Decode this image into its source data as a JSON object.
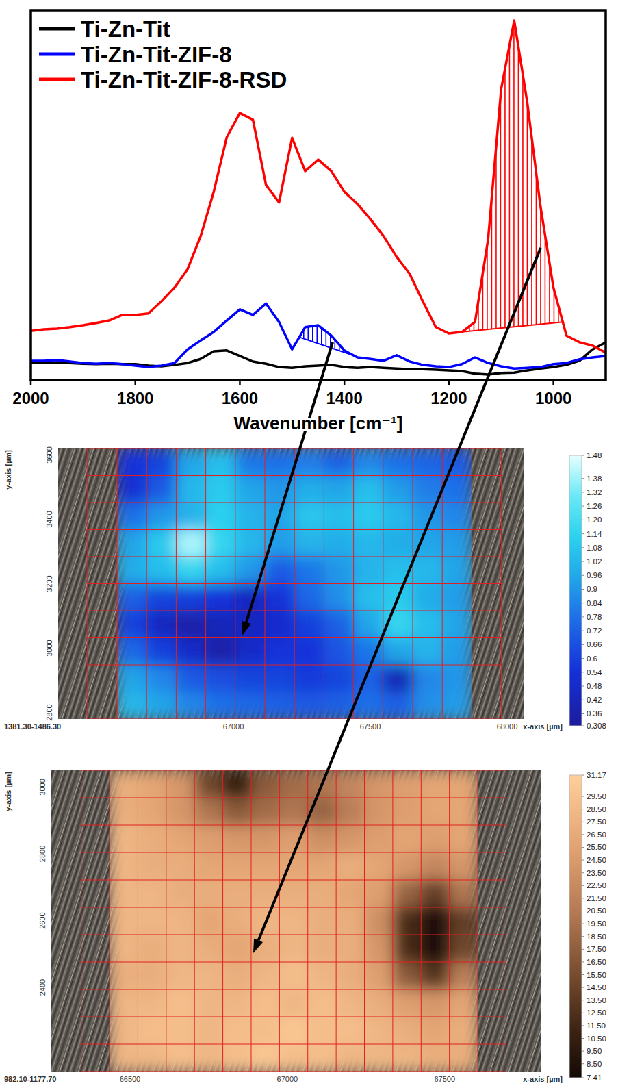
{
  "chart_data": [
    {
      "type": "line",
      "x_label": "Wavenumber [cm⁻¹]",
      "xlim": [
        2000,
        900
      ],
      "xticks": [
        2000,
        1800,
        1600,
        1400,
        1200,
        1000
      ],
      "ylim": [
        0,
        100
      ],
      "tick_labels": "x",
      "legend": "upper left",
      "x": [
        2000,
        1975,
        1950,
        1925,
        1900,
        1875,
        1850,
        1825,
        1800,
        1775,
        1750,
        1725,
        1700,
        1675,
        1650,
        1625,
        1600,
        1575,
        1550,
        1525,
        1500,
        1475,
        1450,
        1425,
        1400,
        1375,
        1350,
        1325,
        1300,
        1275,
        1250,
        1225,
        1200,
        1175,
        1150,
        1125,
        1100,
        1075,
        1050,
        1025,
        1000,
        975,
        950,
        925,
        900
      ],
      "series": [
        {
          "name": "Ti-Zn-Tit",
          "color": "#000000",
          "values": [
            4.6,
            4.6,
            4.8,
            4.6,
            4.4,
            4.3,
            4.4,
            4.3,
            4.3,
            3.9,
            3.7,
            4.1,
            4.6,
            5.7,
            7.8,
            8.0,
            6.5,
            5.0,
            4.4,
            3.5,
            3.3,
            3.7,
            3.9,
            4.1,
            3.5,
            3.3,
            3.5,
            3.3,
            3.1,
            2.9,
            2.9,
            2.8,
            2.6,
            2.4,
            1.7,
            1.5,
            1.9,
            2.0,
            2.6,
            3.1,
            3.5,
            4.1,
            5.2,
            8.3,
            10.2
          ]
        },
        {
          "name": "Ti-Zn-Tit-ZIF-8",
          "color": "#0000ff",
          "values": [
            5.2,
            5.2,
            5.4,
            5.0,
            4.6,
            4.4,
            4.6,
            4.3,
            3.9,
            3.5,
            3.9,
            4.6,
            8.3,
            10.7,
            13.0,
            16.1,
            19.1,
            17.6,
            20.7,
            15.7,
            8.3,
            14.3,
            14.8,
            12.0,
            8.0,
            6.1,
            5.7,
            5.2,
            6.7,
            5.0,
            4.1,
            3.7,
            3.5,
            4.3,
            6.1,
            4.6,
            3.7,
            3.1,
            3.3,
            3.5,
            4.3,
            4.6,
            5.6,
            6.1,
            6.5
          ],
          "integration": [
            1486.3,
            1381.3
          ]
        },
        {
          "name": "Ti-Zn-Tit-ZIF-8-RSD",
          "color": "#ff0000",
          "values": [
            13.3,
            13.7,
            13.9,
            14.3,
            14.8,
            15.4,
            16.1,
            17.6,
            17.6,
            18.0,
            21.3,
            25.0,
            30.0,
            38.9,
            50.9,
            65.7,
            72.2,
            70.4,
            52.8,
            48.0,
            65.5,
            56.5,
            59.6,
            56.5,
            50.9,
            47.6,
            43.5,
            38.9,
            33.3,
            28.7,
            21.3,
            14.3,
            12.6,
            13.0,
            15.7,
            38.0,
            78.7,
            97.2,
            75.0,
            47.2,
            25.0,
            12.0,
            10.2,
            9.3,
            7.4
          ],
          "integration": [
            1177.7,
            982.1
          ]
        }
      ]
    },
    {
      "type": "heatmap",
      "caption": "1381.30-1486.30",
      "x_label": "x-axis [µm]",
      "y_label": "y-axis [µm]",
      "xlim": [
        66360,
        68060
      ],
      "ylim": [
        2780,
        3620
      ],
      "xticks": [
        67000,
        67500,
        68000
      ],
      "yticks": [
        2800,
        3000,
        3200,
        3400,
        3600
      ],
      "grid": true,
      "x_edges": [
        66575,
        66683,
        66791,
        66899,
        67007,
        67115,
        67223,
        67331,
        67439,
        67547,
        67655,
        67763,
        67871
      ],
      "y_edges": [
        3620,
        3536,
        3452,
        3368,
        3284,
        3200,
        3116,
        3032,
        2948,
        2864,
        2780
      ],
      "cells": [
        [
          0.55,
          0.62,
          0.95,
          1.05,
          0.8,
          0.78,
          0.82,
          0.72,
          0.85,
          0.78,
          0.74,
          0.7
        ],
        [
          0.52,
          0.7,
          1.02,
          1.1,
          0.95,
          0.9,
          0.98,
          0.95,
          1.05,
          0.92,
          0.82,
          0.78
        ],
        [
          0.78,
          0.9,
          1.0,
          1.12,
          1.0,
          0.95,
          1.08,
          1.05,
          1.1,
          1.02,
          0.9,
          0.85
        ],
        [
          0.95,
          1.1,
          1.4,
          1.15,
          1.02,
          0.92,
          1.0,
          0.98,
          1.02,
          0.98,
          0.95,
          0.92
        ],
        [
          0.98,
          1.05,
          1.15,
          1.05,
          0.9,
          0.7,
          0.8,
          0.9,
          1.0,
          1.05,
          1.02,
          0.95
        ],
        [
          0.72,
          0.62,
          0.6,
          0.55,
          0.45,
          0.55,
          0.75,
          0.88,
          1.05,
          1.1,
          0.98,
          0.92
        ],
        [
          0.6,
          0.45,
          0.35,
          0.42,
          0.45,
          0.5,
          0.6,
          0.72,
          0.95,
          1.15,
          1.05,
          0.95
        ],
        [
          0.75,
          0.6,
          0.48,
          0.35,
          0.48,
          0.55,
          0.55,
          0.68,
          0.8,
          0.95,
          1.0,
          0.92
        ],
        [
          0.95,
          0.85,
          0.7,
          0.65,
          0.62,
          0.62,
          0.58,
          0.62,
          0.72,
          0.4,
          0.85,
          0.9
        ],
        [
          1.02,
          0.95,
          0.85,
          0.78,
          0.75,
          0.72,
          0.7,
          0.72,
          0.78,
          0.72,
          0.88,
          0.92
        ]
      ],
      "colorbar_range": [
        0.308,
        1.48
      ],
      "colorbar_ticks": [
        1.48,
        1.38,
        1.32,
        1.26,
        {
          "value": 1.2,
          "label": "1.20"
        },
        1.14,
        1.08,
        1.02,
        0.96,
        0.9,
        0.84,
        0.78,
        0.72,
        0.66,
        0.6,
        0.54,
        0.48,
        0.42,
        0.36,
        0.308
      ]
    },
    {
      "type": "heatmap",
      "caption": "982.10-1177.70",
      "x_label": "x-axis [µm]",
      "y_label": "y-axis [µm]",
      "xlim": [
        66250,
        67805
      ],
      "ylim": [
        2148,
        3050
      ],
      "xticks": [
        66500,
        67000,
        67500
      ],
      "yticks": [
        2400,
        2600,
        2800,
        3000
      ],
      "grid": true,
      "x_edges": [
        66435,
        66525,
        66615,
        66705,
        66795,
        66885,
        66975,
        67065,
        67155,
        67245,
        67335,
        67425,
        67515,
        67605
      ],
      "y_edges": [
        3050,
        2968,
        2886,
        2804,
        2722,
        2640,
        2558,
        2476,
        2394,
        2312,
        2230,
        2148
      ],
      "cells": [
        [
          27,
          26,
          24,
          15,
          10,
          17,
          19,
          20,
          22,
          24,
          25,
          26,
          26
        ],
        [
          27,
          26,
          24,
          20,
          17,
          19,
          20,
          18,
          21,
          24,
          25,
          26,
          26
        ],
        [
          28,
          27,
          26,
          25,
          24,
          24,
          25,
          23,
          24,
          25,
          26,
          25,
          26
        ],
        [
          28,
          27,
          27,
          26,
          26,
          26,
          26,
          26,
          27,
          26,
          24,
          22,
          24
        ],
        [
          28,
          28,
          27,
          27,
          27,
          27,
          27,
          27,
          26,
          25,
          18,
          14,
          20
        ],
        [
          28,
          28,
          28,
          26,
          27,
          28,
          28,
          27,
          27,
          23,
          12,
          8,
          14
        ],
        [
          28,
          27,
          28,
          27,
          26,
          27,
          28,
          27,
          27,
          24,
          12,
          8,
          15
        ],
        [
          27,
          27,
          28,
          28,
          27,
          28,
          29,
          28,
          27,
          25,
          17,
          13,
          21
        ],
        [
          28,
          28,
          29,
          28,
          28,
          29,
          28,
          29,
          28,
          27,
          25,
          24,
          26
        ],
        [
          28,
          29,
          29,
          28,
          29,
          29,
          30,
          29,
          29,
          28,
          27,
          26,
          27
        ],
        [
          28,
          28,
          29,
          28,
          29,
          30,
          29,
          29,
          28,
          28,
          28,
          27,
          27
        ]
      ],
      "colorbar_range": [
        7.41,
        31.17
      ],
      "colorbar_ticks": [
        31.17,
        {
          "value": 29.5,
          "label": "29.50"
        },
        {
          "value": 28.5,
          "label": "28.50"
        },
        {
          "value": 27.5,
          "label": "27.50"
        },
        {
          "value": 26.5,
          "label": "26.50"
        },
        {
          "value": 25.5,
          "label": "25.50"
        },
        {
          "value": 24.5,
          "label": "24.50"
        },
        {
          "value": 23.5,
          "label": "23.50"
        },
        {
          "value": 22.5,
          "label": "22.50"
        },
        {
          "value": 21.5,
          "label": "21.50"
        },
        {
          "value": 20.5,
          "label": "20.50"
        },
        {
          "value": 19.5,
          "label": "19.50"
        },
        {
          "value": 18.5,
          "label": "18.50"
        },
        {
          "value": 17.5,
          "label": "17.50"
        },
        {
          "value": 16.5,
          "label": "16.50"
        },
        {
          "value": 15.5,
          "label": "15.50"
        },
        {
          "value": 14.5,
          "label": "14.50"
        },
        {
          "value": 13.5,
          "label": "13.50"
        },
        {
          "value": 12.5,
          "label": "12.50"
        },
        {
          "value": 11.5,
          "label": "11.50"
        },
        {
          "value": 10.5,
          "label": "10.50"
        },
        {
          "value": 9.5,
          "label": "9.50"
        },
        {
          "value": 8.5,
          "label": "8.50"
        },
        7.41
      ]
    }
  ]
}
